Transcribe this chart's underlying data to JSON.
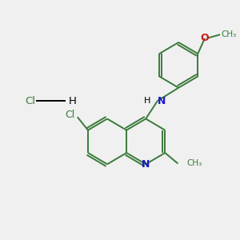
{
  "background_color": "#f0f0f0",
  "bond_color": "#3a7a3a",
  "n_color": "#1a1acc",
  "o_color": "#cc1a1a",
  "cl_color": "#3a7a3a",
  "line_width": 1.4,
  "figsize": [
    3.0,
    3.0
  ],
  "dpi": 100,
  "xlim": [
    0,
    10
  ],
  "ylim": [
    0,
    10
  ]
}
